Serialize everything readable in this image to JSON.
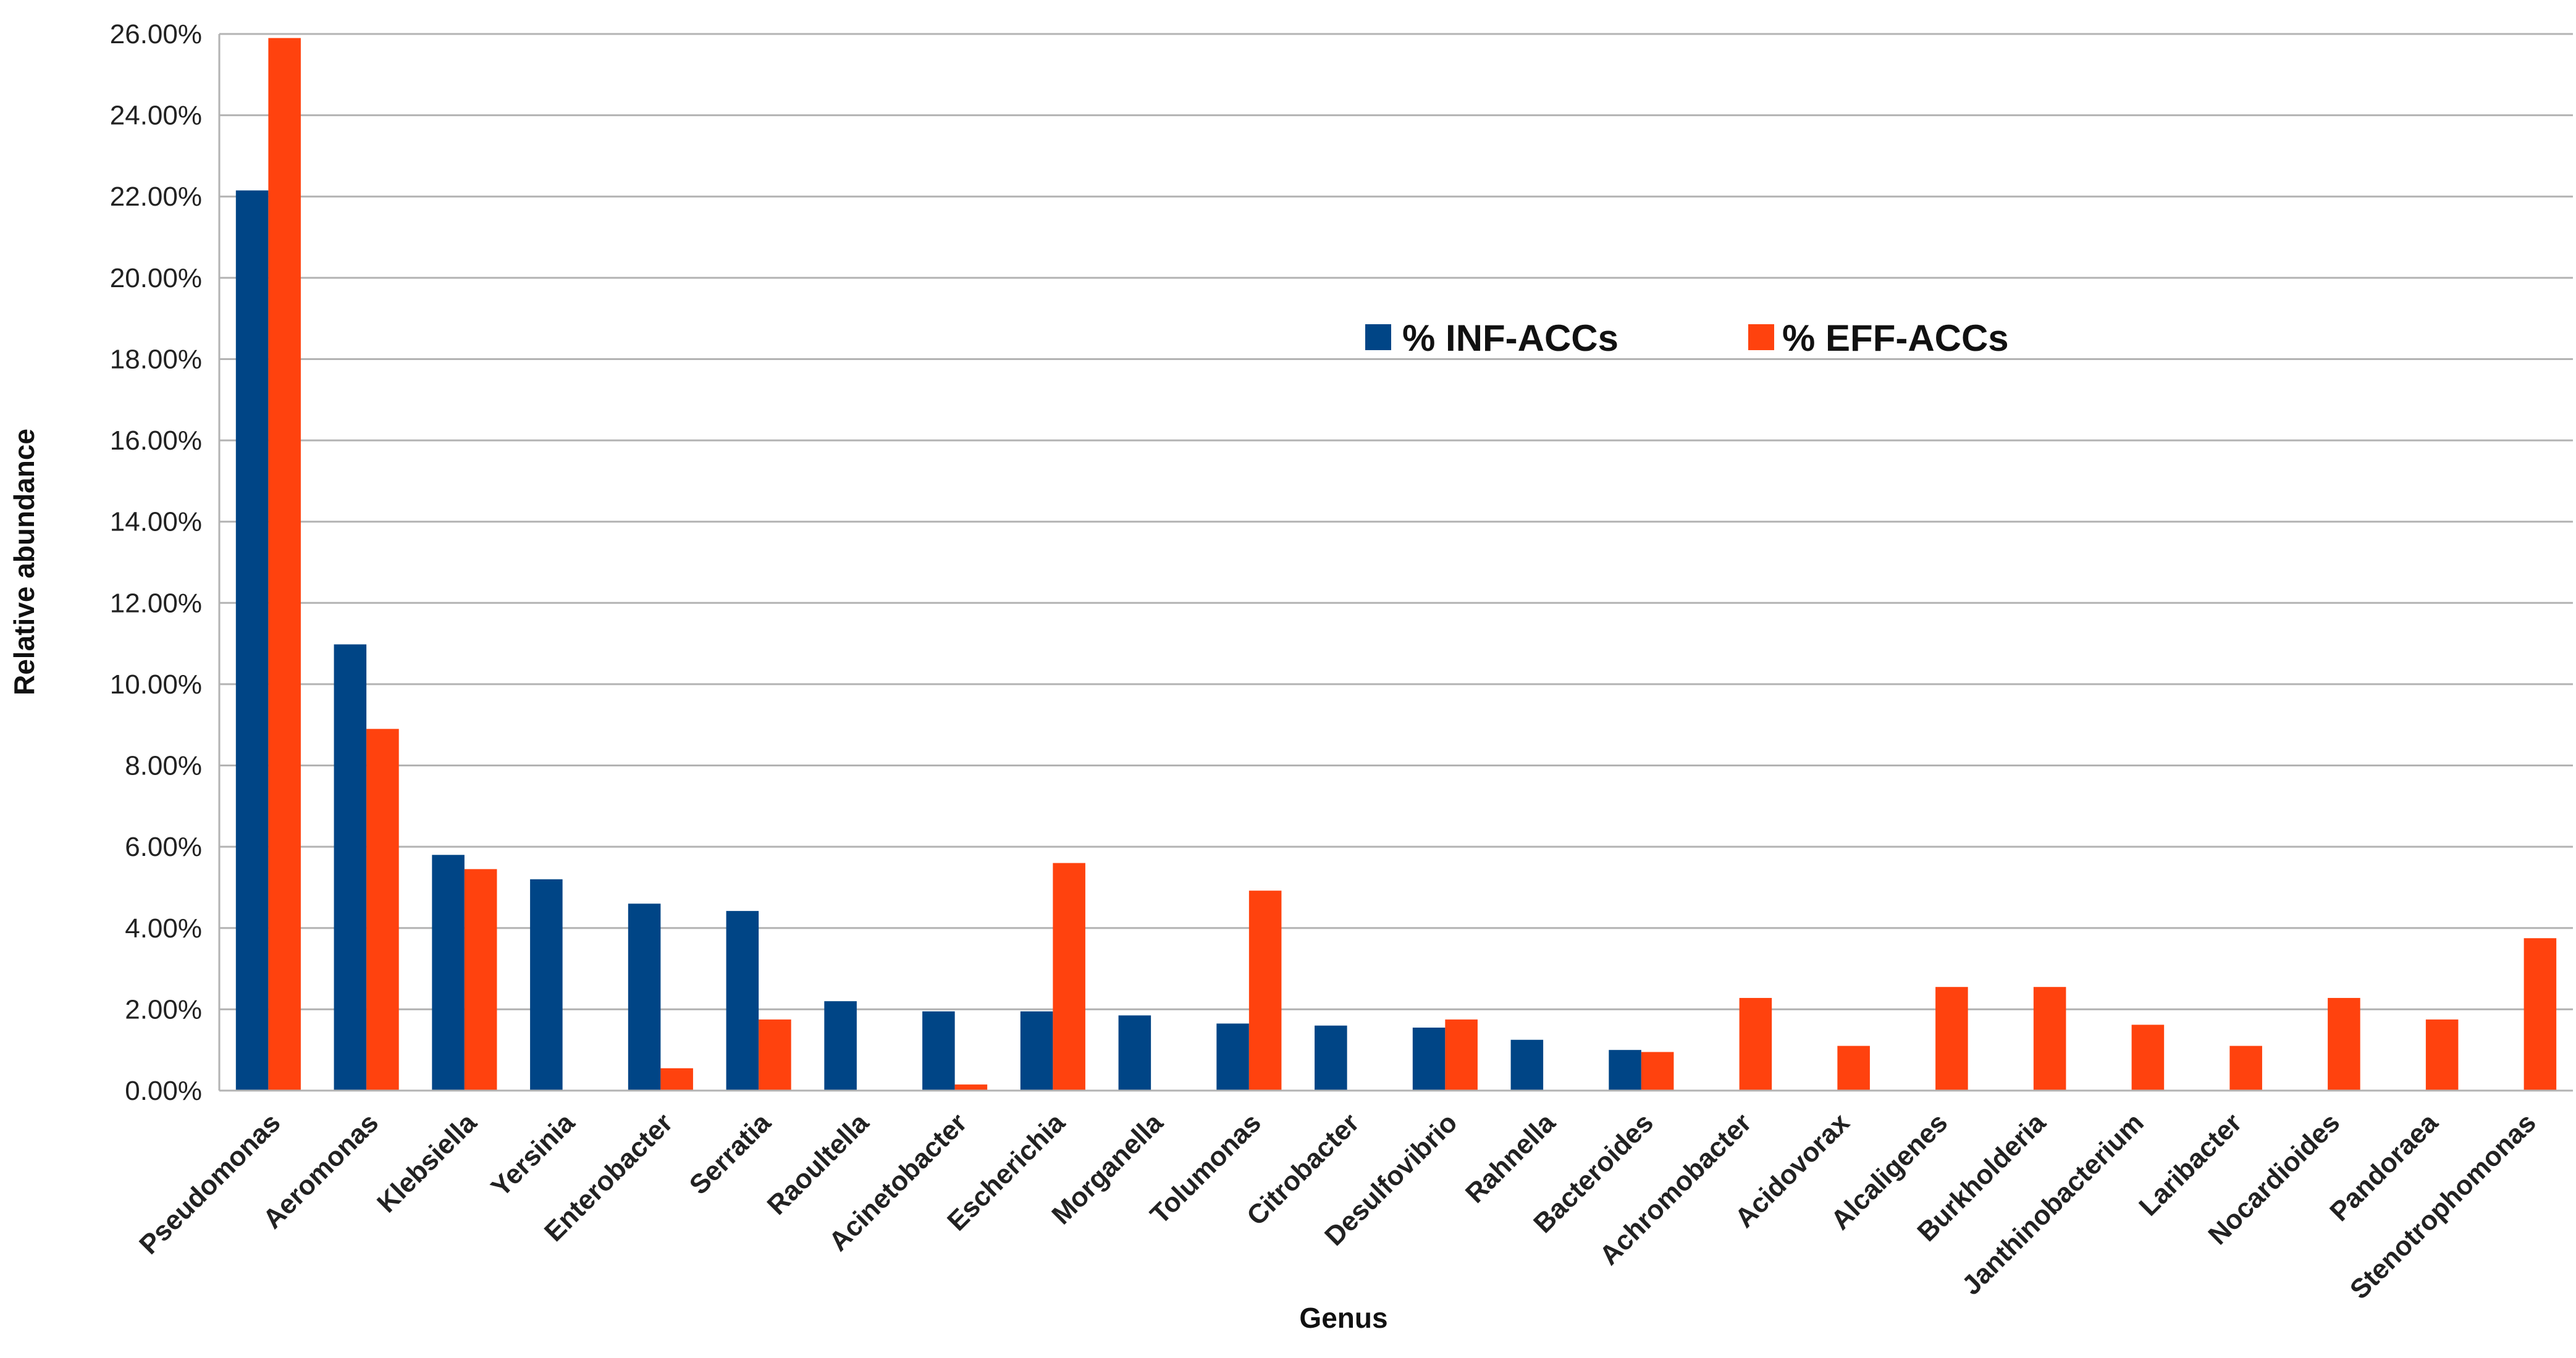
{
  "chart_data": {
    "type": "bar",
    "title": "",
    "xlabel": "Genus",
    "ylabel": "Relative abundance",
    "ylim": [
      0,
      26
    ],
    "yticks": [
      0,
      2,
      4,
      6,
      8,
      10,
      12,
      14,
      16,
      18,
      20,
      22,
      24,
      26
    ],
    "ytick_labels": [
      "0.00%",
      "2.00%",
      "4.00%",
      "6.00%",
      "8.00%",
      "10.00%",
      "12.00%",
      "14.00%",
      "16.00%",
      "18.00%",
      "20.00%",
      "22.00%",
      "24.00%",
      "26.00%"
    ],
    "grid": true,
    "legend_position": "top-center",
    "categories": [
      "Pseudomonas",
      "Aeromonas",
      "Klebsiella",
      "Yersinia",
      "Enterobacter",
      "Serratia",
      "Raoultella",
      "Acinetobacter",
      "Escherichia",
      "Morganella",
      "Tolumonas",
      "Citrobacter",
      "Desulfovibrio",
      "Rahnella",
      "Bacteroides",
      "Achromobacter",
      "Acidovorax",
      "Alcaligenes",
      "Burkholderia",
      "Janthinobacterium",
      "Laribacter",
      "Nocardioides",
      "Pandoraea",
      "Stenotrophomonas"
    ],
    "series": [
      {
        "name": "% INF-ACCs",
        "color": "#004586",
        "values": [
          22.15,
          10.98,
          5.8,
          5.2,
          4.6,
          4.42,
          2.2,
          1.95,
          1.95,
          1.85,
          1.65,
          1.6,
          1.55,
          1.25,
          1.0,
          0,
          0,
          0,
          0,
          0,
          0,
          0,
          0,
          0
        ]
      },
      {
        "name": "% EFF-ACCs",
        "color": "#ff420e",
        "values": [
          25.9,
          8.9,
          5.45,
          0,
          0.55,
          1.75,
          0,
          0.15,
          5.6,
          0,
          4.92,
          0,
          1.75,
          0,
          0.95,
          2.28,
          1.1,
          2.55,
          2.55,
          1.62,
          1.1,
          2.28,
          1.75,
          3.75
        ]
      }
    ]
  }
}
